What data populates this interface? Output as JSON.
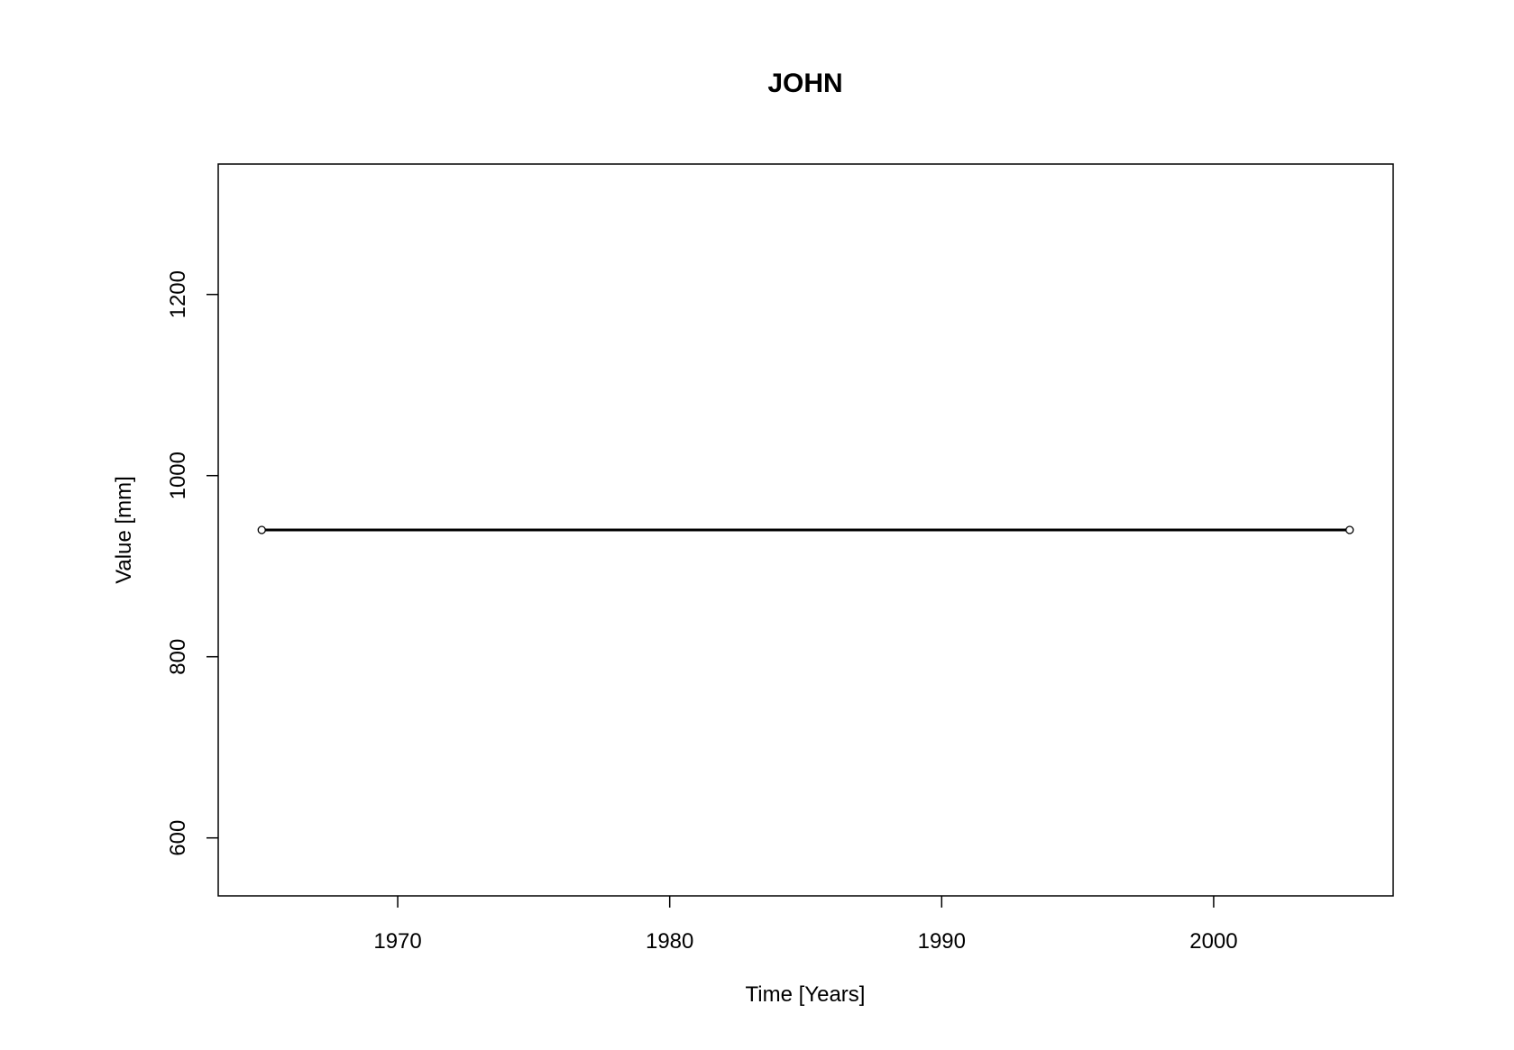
{
  "chart_data": {
    "type": "line",
    "title": "JOHN",
    "xlabel": "Time [Years]",
    "ylabel": "Value [mm]",
    "xlim": [
      1963.4,
      2006.6
    ],
    "ylim": [
      536,
      1344
    ],
    "xticks": [
      1970,
      1980,
      1990,
      2000
    ],
    "xtick_labels": [
      "1970",
      "1980",
      "1990",
      "2000"
    ],
    "yticks": [
      600,
      800,
      1000,
      1200
    ],
    "ytick_labels": [
      "600",
      "800",
      "1000",
      "1200"
    ],
    "grid": false,
    "series": [
      {
        "x": [
          1965,
          2005
        ],
        "values": [
          940,
          940
        ],
        "color": "#000000",
        "marker": "open-circle"
      }
    ]
  }
}
